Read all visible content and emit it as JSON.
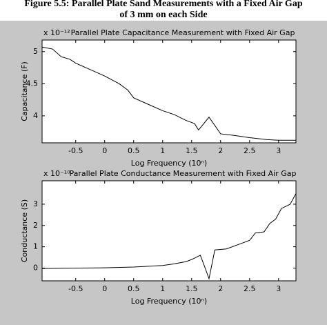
{
  "caption": [
    "Figure 5.5: Parallel Plate Sand Measurements with a Fixed Air Gap",
    "of 3 mm on each Side"
  ],
  "chart_data": [
    {
      "type": "line",
      "title": "Parallel Plate Capacitance Measurement with Fixed Air Gap",
      "multiplier": "x 10⁻¹²",
      "xlabel": "Log Frequency (10ⁿ)",
      "ylabel": "Capacitance (F)",
      "xlim": [
        -1.08,
        3.3
      ],
      "ylim": [
        3.58,
        5.18
      ],
      "xticks": [
        -0.5,
        0,
        0.5,
        1,
        1.5,
        2,
        2.5,
        3
      ],
      "yticks": [
        4,
        4.5,
        5
      ],
      "x": [
        -1.08,
        -0.9,
        -0.75,
        -0.6,
        -0.5,
        -0.4,
        -0.25,
        0,
        0.25,
        0.4,
        0.5,
        0.75,
        1,
        1.2,
        1.4,
        1.55,
        1.62,
        1.8,
        2.0,
        2.2,
        2.5,
        2.8,
        3.0,
        3.3
      ],
      "values": [
        5.07,
        5.04,
        4.92,
        4.88,
        4.82,
        4.78,
        4.72,
        4.62,
        4.5,
        4.4,
        4.28,
        4.18,
        4.08,
        4.02,
        3.93,
        3.88,
        3.78,
        3.98,
        3.72,
        3.7,
        3.66,
        3.63,
        3.62,
        3.62
      ],
      "color": "#000000"
    },
    {
      "type": "line",
      "title": "Parallel Plate Conductance Measurement with Fixed Air Gap",
      "multiplier": "x 10⁻¹⁰",
      "xlabel": "Log Frequency (10ⁿ)",
      "ylabel": "Conductance (S)",
      "xlim": [
        -1.08,
        3.3
      ],
      "ylim": [
        -0.6,
        4.1
      ],
      "xticks": [
        -0.5,
        0,
        0.5,
        1,
        1.5,
        2,
        2.5,
        3
      ],
      "yticks": [
        0,
        1,
        2,
        3
      ],
      "x": [
        -1.08,
        -0.5,
        0,
        0.5,
        1,
        1.2,
        1.4,
        1.5,
        1.65,
        1.72,
        1.8,
        1.9,
        2.1,
        2.3,
        2.5,
        2.6,
        2.75,
        2.85,
        2.95,
        3.05,
        3.2,
        3.3
      ],
      "values": [
        -0.02,
        0,
        0.01,
        0.05,
        0.12,
        0.2,
        0.3,
        0.4,
        0.6,
        0.1,
        -0.5,
        0.85,
        0.9,
        1.1,
        1.3,
        1.65,
        1.7,
        2.1,
        2.3,
        2.8,
        3.0,
        3.5
      ],
      "color": "#000000"
    }
  ]
}
